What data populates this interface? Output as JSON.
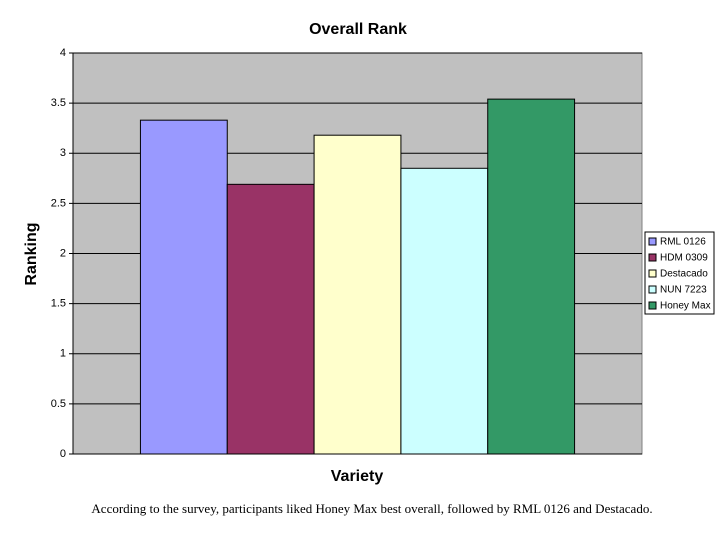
{
  "chart_data": {
    "type": "bar",
    "title": "Overall Rank",
    "x_label": "Variety",
    "y_label": "Ranking",
    "caption": "According to the survey, participants liked Honey Max best overall, followed by RML 0126 and Destacado.",
    "series": [
      {
        "name": "RML 0126",
        "color": "#9999ff",
        "values": [
          3.33
        ]
      },
      {
        "name": "HDM 0309",
        "color": "#993366",
        "values": [
          2.69
        ]
      },
      {
        "name": "Destacado",
        "color": "#ffffcc",
        "values": [
          3.18
        ]
      },
      {
        "name": "NUN 7223",
        "color": "#ccffff",
        "values": [
          2.85
        ]
      },
      {
        "name": "Honey Max",
        "color": "#339966",
        "values": [
          3.54
        ]
      }
    ],
    "ylim": [
      0,
      4
    ],
    "yticks": [
      0,
      0.5,
      1,
      1.5,
      2,
      2.5,
      3,
      3.5,
      4
    ],
    "grid": true,
    "plot_background": "#c0c0c0",
    "legend": "right"
  }
}
